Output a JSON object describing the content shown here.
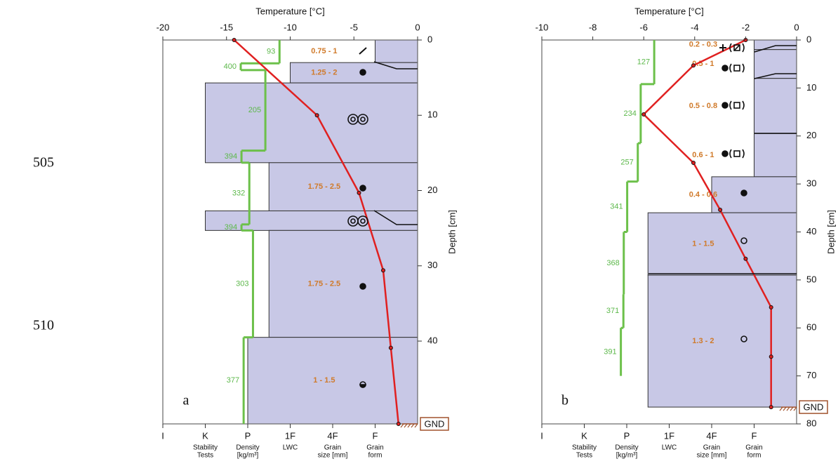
{
  "line_numbers": [
    "505",
    "510"
  ],
  "chart_data": [
    {
      "type": "snow-profile",
      "panel_label": "a",
      "x_label": "Temperature [°C]",
      "y_label": "Depth [cm]",
      "xlim": [
        -20,
        0
      ],
      "xticks": [
        -20,
        -15,
        -10,
        -5,
        0
      ],
      "ylim": [
        0,
        51
      ],
      "yticks": [
        0,
        10,
        20,
        30,
        40
      ],
      "hardness_lim": [
        0,
        6
      ],
      "hardness_ticks": [
        {
          "value": 6,
          "label": "I"
        },
        {
          "value": 5,
          "label": "K"
        },
        {
          "value": 4,
          "label": "P"
        },
        {
          "value": 3,
          "label": "1F"
        },
        {
          "value": 2,
          "label": "4F"
        },
        {
          "value": 1,
          "label": "F"
        }
      ],
      "column_labels": [
        [
          "Stability",
          "Tests"
        ],
        [
          "Density",
          "[kg/m³]"
        ],
        [
          "LWC"
        ],
        [
          "Grain",
          "size [mm]"
        ],
        [
          "Grain",
          "form"
        ]
      ],
      "column_colors": [
        "#111111",
        "#5cb84a",
        "#4a9ab0",
        "#d07a2a",
        "#111111"
      ],
      "ground": 51,
      "ground_label": "GND",
      "layer_color": "#c8c8e6",
      "density_color": "#6cc04a",
      "temperature_color": "#e02020",
      "layers": [
        {
          "top": 0,
          "bottom": 3,
          "hardness": 1,
          "grain_size": "0.75 - 1"
        },
        {
          "top": 3,
          "bottom": 5.7,
          "hardness": 3,
          "grain_size": "1.25 - 2"
        },
        {
          "top": 5.7,
          "bottom": 16.3,
          "hardness": 5,
          "grain_size": null
        },
        {
          "top": 16.3,
          "bottom": 22.7,
          "hardness": 3.5,
          "grain_size": "1.75 - 2.5"
        },
        {
          "top": 22.7,
          "bottom": 25.3,
          "hardness": 5,
          "grain_size": null
        },
        {
          "top": 25.3,
          "bottom": 39.5,
          "hardness": 3.5,
          "grain_size": "1.75 - 2.5"
        },
        {
          "top": 39.5,
          "bottom": 51,
          "hardness": 4,
          "grain_size": "1 - 1.5"
        }
      ],
      "density": [
        {
          "top": 0,
          "bottom": 3.1,
          "value": 93
        },
        {
          "top": 3.1,
          "bottom": 4.0,
          "value": 400
        },
        {
          "top": 4.0,
          "bottom": 14.7,
          "value": 205
        },
        {
          "top": 14.7,
          "bottom": 16.3,
          "value": 394
        },
        {
          "top": 16.3,
          "bottom": 24.5,
          "value": 332
        },
        {
          "top": 24.5,
          "bottom": 25.3,
          "value": 394
        },
        {
          "top": 25.3,
          "bottom": 39.5,
          "value": 303
        },
        {
          "top": 39.5,
          "bottom": 51,
          "value": 377
        }
      ],
      "temperature": {
        "depth": [
          0,
          10,
          20.3,
          30.6,
          40.9,
          51
        ],
        "values": [
          -14.4,
          -7.9,
          -4.6,
          -2.7,
          -2.1,
          -1.5
        ]
      }
    },
    {
      "type": "snow-profile",
      "panel_label": "b",
      "x_label": "Temperature [°C]",
      "y_label": "Depth [cm]",
      "xlim": [
        -10,
        0
      ],
      "xticks": [
        -10,
        -8,
        -6,
        -4,
        -2,
        0
      ],
      "ylim": [
        0,
        80
      ],
      "yticks": [
        0,
        10,
        20,
        30,
        40,
        50,
        60,
        70,
        80
      ],
      "hardness_lim": [
        0,
        6
      ],
      "hardness_ticks": [
        {
          "value": 6,
          "label": "I"
        },
        {
          "value": 5,
          "label": "K"
        },
        {
          "value": 4,
          "label": "P"
        },
        {
          "value": 3,
          "label": "1F"
        },
        {
          "value": 2,
          "label": "4F"
        },
        {
          "value": 1,
          "label": "F"
        }
      ],
      "column_labels": [
        [
          "Stability",
          "Tests"
        ],
        [
          "Density",
          "[kg/m³]"
        ],
        [
          "LWC"
        ],
        [
          "Grain",
          "size [mm]"
        ],
        [
          "Grain",
          "form"
        ]
      ],
      "column_colors": [
        "#111111",
        "#5cb84a",
        "#4a9ab0",
        "#d07a2a",
        "#111111"
      ],
      "ground": 76.5,
      "ground_label": "GND",
      "layer_color": "#c8c8e6",
      "density_color": "#6cc04a",
      "temperature_color": "#e02020",
      "layers": [
        {
          "top": 0,
          "bottom": 2,
          "hardness": 1,
          "grain_size": "0.2 - 0.3"
        },
        {
          "top": 2,
          "bottom": 8,
          "hardness": 1,
          "grain_size": "0.5 - 1"
        },
        {
          "top": 8,
          "bottom": 19.5,
          "hardness": 1,
          "grain_size": "0.5 - 0.8"
        },
        {
          "top": 19.5,
          "bottom": 28.5,
          "hardness": 1,
          "grain_size": "0.6 - 1"
        },
        {
          "top": 28.5,
          "bottom": 36,
          "hardness": 2,
          "grain_size": "0.4 - 0.6"
        },
        {
          "top": 36,
          "bottom": 49,
          "hardness": 3.5,
          "grain_size": "1 - 1.5"
        },
        {
          "top": 49,
          "bottom": 76.5,
          "hardness": 3.5,
          "grain_size": "1.3 - 2"
        }
      ],
      "density": [
        {
          "top": 0,
          "bottom": 9.2,
          "value": 127
        },
        {
          "top": 9.2,
          "bottom": 21.5,
          "value": 234
        },
        {
          "top": 21.5,
          "bottom": 29.5,
          "value": 257
        },
        {
          "top": 29.5,
          "bottom": 40,
          "value": 341
        },
        {
          "top": 40,
          "bottom": 53,
          "value": 368
        },
        {
          "top": 53,
          "bottom": 60,
          "value": 371
        },
        {
          "top": 60,
          "bottom": 70,
          "value": 391
        }
      ],
      "temperature": {
        "depth": [
          0,
          5.3,
          15.5,
          25.6,
          35.4,
          45.6,
          55.7,
          66,
          76.5
        ],
        "values": [
          -2,
          -4.05,
          -6,
          -4.05,
          -3,
          -2,
          -1,
          -1,
          -1
        ]
      }
    }
  ]
}
